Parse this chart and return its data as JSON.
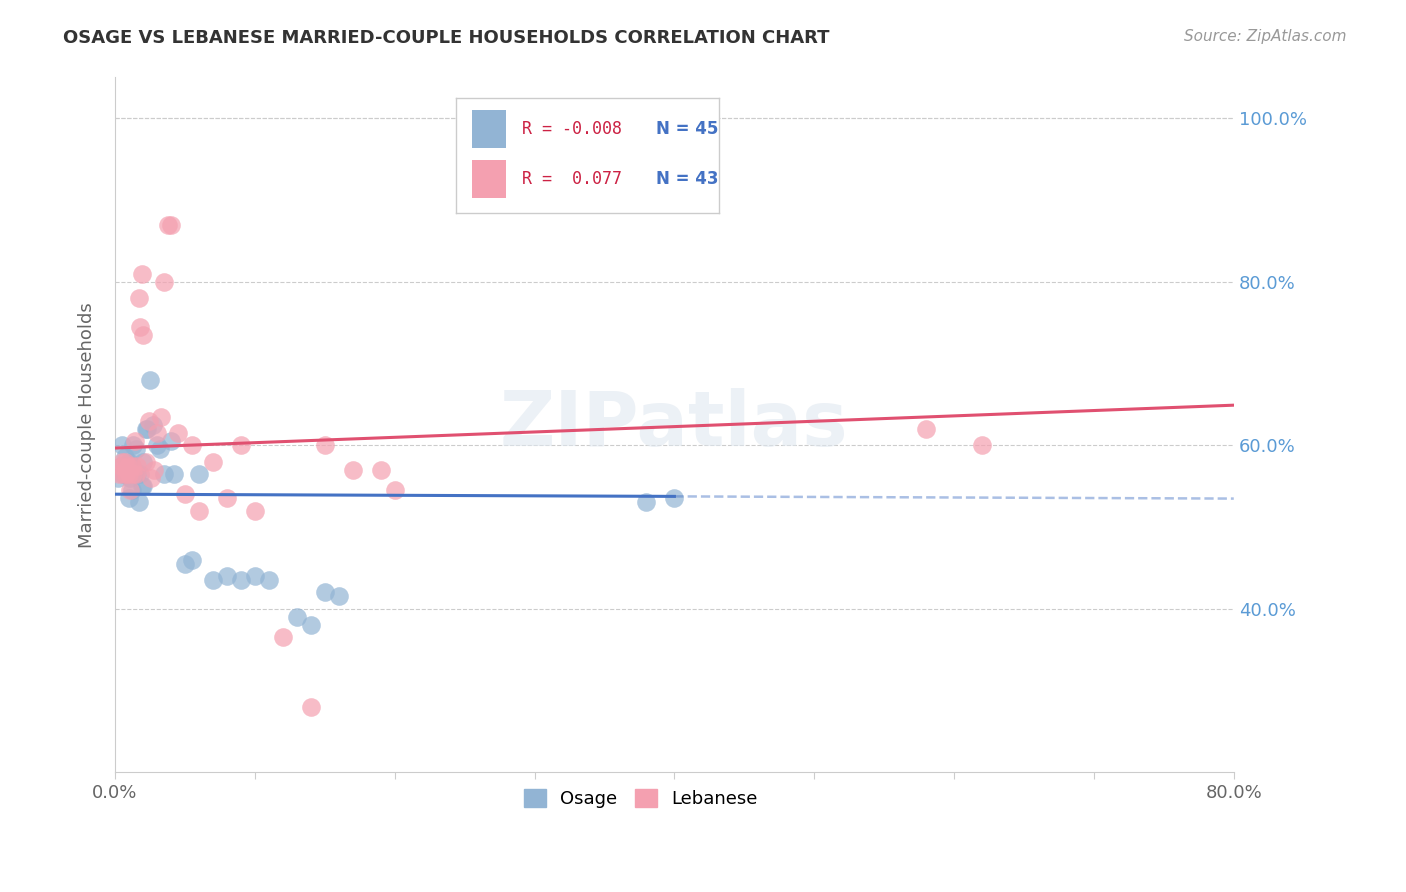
{
  "title": "OSAGE VS LEBANESE MARRIED-COUPLE HOUSEHOLDS CORRELATION CHART",
  "source": "Source: ZipAtlas.com",
  "ylabel": "Married-couple Households",
  "xlim": [
    0.0,
    0.8
  ],
  "ylim": [
    0.2,
    1.05
  ],
  "right_ytick_color": "#5b9bd5",
  "osage_color": "#92b4d4",
  "lebanese_color": "#f4a0b0",
  "osage_edge_color": "#6699cc",
  "lebanese_edge_color": "#e07090",
  "osage_line_color": "#4472C4",
  "lebanese_line_color": "#e05070",
  "watermark": "ZIPatlas",
  "osage_x": [
    0.002,
    0.004,
    0.005,
    0.006,
    0.007,
    0.008,
    0.009,
    0.01,
    0.01,
    0.011,
    0.012,
    0.012,
    0.013,
    0.013,
    0.014,
    0.015,
    0.016,
    0.017,
    0.018,
    0.019,
    0.02,
    0.02,
    0.022,
    0.023,
    0.025,
    0.027,
    0.03,
    0.032,
    0.035,
    0.04,
    0.042,
    0.05,
    0.055,
    0.06,
    0.07,
    0.08,
    0.09,
    0.1,
    0.11,
    0.13,
    0.14,
    0.15,
    0.16,
    0.38,
    0.4
  ],
  "osage_y": [
    0.56,
    0.575,
    0.6,
    0.565,
    0.585,
    0.565,
    0.565,
    0.58,
    0.535,
    0.56,
    0.575,
    0.545,
    0.6,
    0.565,
    0.565,
    0.595,
    0.565,
    0.53,
    0.565,
    0.55,
    0.58,
    0.55,
    0.62,
    0.62,
    0.68,
    0.625,
    0.6,
    0.595,
    0.565,
    0.605,
    0.565,
    0.455,
    0.46,
    0.565,
    0.435,
    0.44,
    0.435,
    0.44,
    0.435,
    0.39,
    0.38,
    0.42,
    0.415,
    0.53,
    0.535
  ],
  "lebanese_x": [
    0.003,
    0.004,
    0.005,
    0.006,
    0.007,
    0.008,
    0.009,
    0.01,
    0.011,
    0.012,
    0.013,
    0.014,
    0.015,
    0.016,
    0.017,
    0.018,
    0.019,
    0.02,
    0.022,
    0.024,
    0.026,
    0.028,
    0.03,
    0.033,
    0.035,
    0.038,
    0.04,
    0.045,
    0.05,
    0.055,
    0.06,
    0.07,
    0.08,
    0.09,
    0.1,
    0.12,
    0.14,
    0.15,
    0.17,
    0.19,
    0.2,
    0.58,
    0.62
  ],
  "lebanese_y": [
    0.565,
    0.575,
    0.58,
    0.565,
    0.58,
    0.565,
    0.575,
    0.565,
    0.545,
    0.575,
    0.565,
    0.605,
    0.565,
    0.575,
    0.78,
    0.745,
    0.81,
    0.735,
    0.58,
    0.63,
    0.56,
    0.57,
    0.615,
    0.635,
    0.8,
    0.87,
    0.87,
    0.615,
    0.54,
    0.6,
    0.52,
    0.58,
    0.535,
    0.6,
    0.52,
    0.365,
    0.28,
    0.6,
    0.57,
    0.57,
    0.545,
    0.62,
    0.6
  ]
}
